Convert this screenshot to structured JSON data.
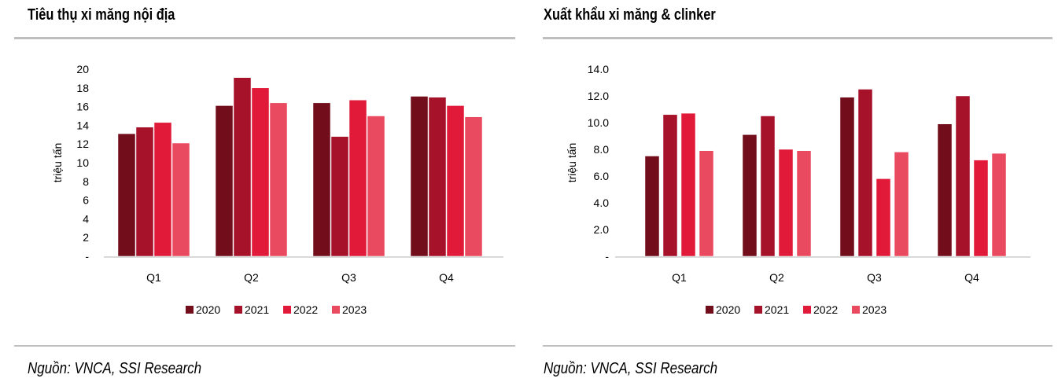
{
  "colors": [
    "#720d1b",
    "#a5122a",
    "#e01a38",
    "#ea4a5f"
  ],
  "chart_data": [
    {
      "type": "bar",
      "title": "Tiêu thụ xi măng nội địa",
      "ylabel": "triệu tấn",
      "xlabel": "",
      "categories": [
        "Q1",
        "Q2",
        "Q3",
        "Q4"
      ],
      "ylim": [
        0,
        20
      ],
      "yticks": [
        "-",
        "2",
        "4",
        "6",
        "8",
        "10",
        "12",
        "14",
        "16",
        "18",
        "20"
      ],
      "series": [
        {
          "name": "2020",
          "values": [
            13.1,
            16.1,
            16.4,
            17.1
          ]
        },
        {
          "name": "2021",
          "values": [
            13.8,
            19.1,
            12.8,
            17.0
          ]
        },
        {
          "name": "2022",
          "values": [
            14.3,
            18.0,
            16.7,
            16.1
          ]
        },
        {
          "name": "2023",
          "values": [
            12.1,
            16.4,
            15.0,
            14.9
          ]
        }
      ],
      "legend": "bottom",
      "grid": false,
      "source": "Nguồn: VNCA, SSI Research"
    },
    {
      "type": "bar",
      "title": "Xuất khẩu xi măng & clinker",
      "ylabel": "triệu tấn",
      "xlabel": "",
      "categories": [
        "Q1",
        "Q2",
        "Q3",
        "Q4"
      ],
      "ylim": [
        0,
        14
      ],
      "yticks": [
        "-",
        "2.0",
        "4.0",
        "6.0",
        "8.0",
        "10.0",
        "12.0",
        "14.0"
      ],
      "series": [
        {
          "name": "2020",
          "values": [
            7.5,
            9.1,
            11.9,
            9.9
          ]
        },
        {
          "name": "2021",
          "values": [
            10.6,
            10.5,
            12.5,
            12.0
          ]
        },
        {
          "name": "2022",
          "values": [
            10.7,
            8.0,
            5.8,
            7.2
          ]
        },
        {
          "name": "2023",
          "values": [
            7.9,
            7.9,
            7.8,
            7.7
          ]
        }
      ],
      "legend": "bottom",
      "grid": false,
      "source": "Nguồn: VNCA, SSI Research"
    }
  ]
}
